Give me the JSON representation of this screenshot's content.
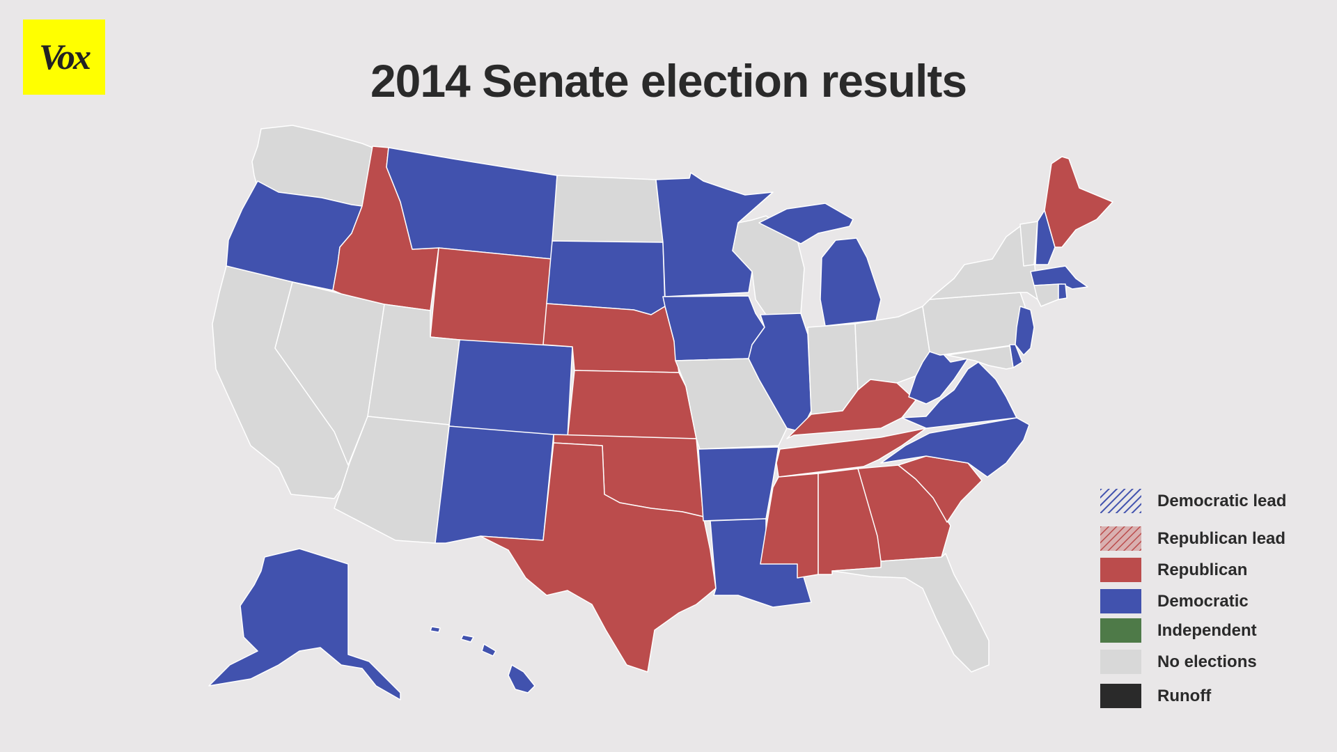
{
  "logo": "Vox",
  "title": "2014 Senate election results",
  "colors": {
    "background": "#e9e7e8",
    "republican": "#bb4c4c",
    "democratic": "#4152ae",
    "independent": "#4e7a48",
    "no_elections": "#d8d8d8",
    "runoff": "#2a2a2a",
    "logo_bg": "#ffff00"
  },
  "legend": [
    {
      "key": "dem_lead",
      "label": "Democratic lead",
      "swatch": "hatch-blue"
    },
    {
      "key": "rep_lead",
      "label": "Republican lead",
      "swatch": "hatch-red"
    },
    {
      "key": "republican",
      "label": "Republican",
      "swatch": "#bb4c4c"
    },
    {
      "key": "democratic",
      "label": "Democratic",
      "swatch": "#4152ae"
    },
    {
      "key": "independent",
      "label": "Independent",
      "swatch": "#4e7a48"
    },
    {
      "key": "no_elections",
      "label": "No elections",
      "swatch": "#d8d8d8"
    },
    {
      "key": "runoff",
      "label": "Runoff",
      "swatch": "#2a2a2a"
    }
  ],
  "states": {
    "WA": "no_elections",
    "OR": "democratic",
    "CA": "no_elections",
    "NV": "no_elections",
    "ID": "republican",
    "MT": "democratic",
    "WY": "republican",
    "UT": "no_elections",
    "AZ": "no_elections",
    "CO": "democratic",
    "NM": "democratic",
    "ND": "no_elections",
    "SD": "democratic",
    "NE": "republican",
    "KS": "republican",
    "OK": "republican",
    "TX": "republican",
    "MN": "democratic",
    "IA": "democratic",
    "MO": "no_elections",
    "AR": "democratic",
    "LA": "democratic",
    "WI": "no_elections",
    "IL": "democratic",
    "MI": "democratic",
    "IN": "no_elections",
    "OH": "no_elections",
    "KY": "republican",
    "TN": "republican",
    "MS": "republican",
    "AL": "republican",
    "GA": "republican",
    "FL": "no_elections",
    "SC": "republican",
    "NC": "democratic",
    "VA": "democratic",
    "WV": "democratic",
    "PA": "no_elections",
    "NY": "no_elections",
    "NJ": "democratic",
    "DE": "democratic",
    "MD": "no_elections",
    "VT": "no_elections",
    "NH": "democratic",
    "ME": "republican",
    "MA": "democratic",
    "RI": "democratic",
    "CT": "no_elections",
    "AK": "democratic",
    "HI": "democratic"
  }
}
